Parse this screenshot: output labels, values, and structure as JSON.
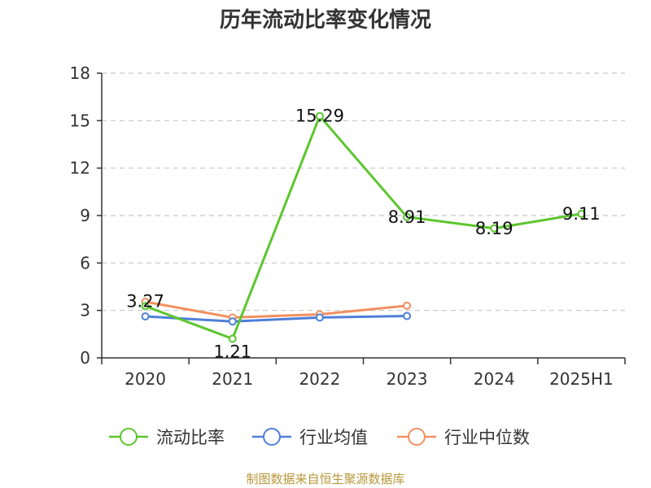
{
  "chart_data": {
    "type": "line",
    "title": "历年流动比率变化情况",
    "categories": [
      "2020",
      "2021",
      "2022",
      "2023",
      "2024",
      "2025H1"
    ],
    "ylim": [
      0,
      18
    ],
    "yticks": [
      "0",
      "3",
      "6",
      "9",
      "12",
      "15",
      "18"
    ],
    "grid": true,
    "legend_position": "bottom",
    "series": [
      {
        "name": "流动比率",
        "color": "#5cc62e",
        "values": [
          3.27,
          1.21,
          15.29,
          8.91,
          8.19,
          9.11
        ],
        "labels": [
          "3.27",
          "1.21",
          "15.29",
          "8.91",
          "8.19",
          "9.11"
        ]
      },
      {
        "name": "行业均值",
        "color": "#4f7fd8",
        "values": [
          2.62,
          2.3,
          2.55,
          2.65,
          null,
          null
        ]
      },
      {
        "name": "行业中位数",
        "color": "#f39060",
        "values": [
          3.55,
          2.55,
          2.75,
          3.3,
          null,
          null
        ]
      }
    ]
  },
  "source_text": "制图数据来自恒生聚源数据库"
}
